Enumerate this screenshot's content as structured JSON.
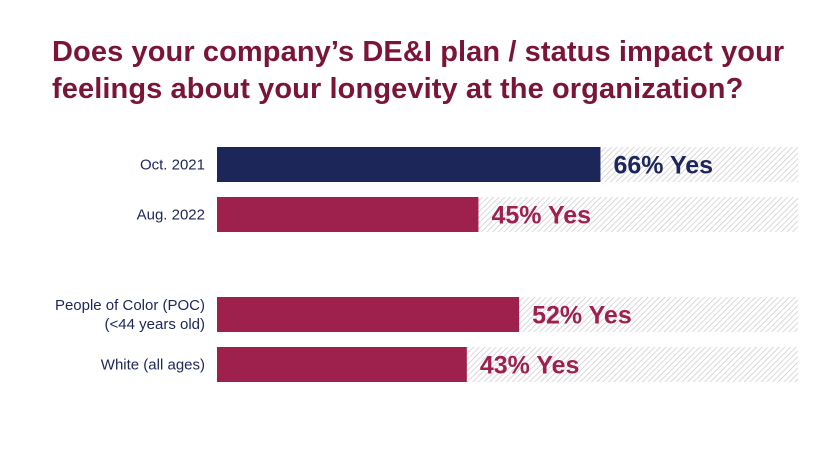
{
  "chart_data": {
    "type": "bar",
    "orientation": "horizontal",
    "title_lines": [
      "Does your company’s DE&I plan / status impact your",
      "feelings about your longevity at the organization?"
    ],
    "xlim": [
      0,
      100
    ],
    "grid": false,
    "legend": "none",
    "value_suffix": "% Yes",
    "groups": [
      {
        "bars": [
          {
            "label_lines": [
              "Oct. 2021"
            ],
            "value": 66,
            "color": "#1c2658"
          },
          {
            "label_lines": [
              "Aug. 2022"
            ],
            "value": 45,
            "color": "#9e214d"
          }
        ]
      },
      {
        "bars": [
          {
            "label_lines": [
              "People of Color (POC)",
              "(<44 years old)"
            ],
            "value": 52,
            "color": "#9e214d"
          },
          {
            "label_lines": [
              "White (all ages)"
            ],
            "value": 43,
            "color": "#9e214d"
          }
        ]
      }
    ]
  },
  "colors": {
    "title": "#7a1537",
    "category_label": "#1c2658",
    "remainder_hatch": "#c8c4c8"
  }
}
